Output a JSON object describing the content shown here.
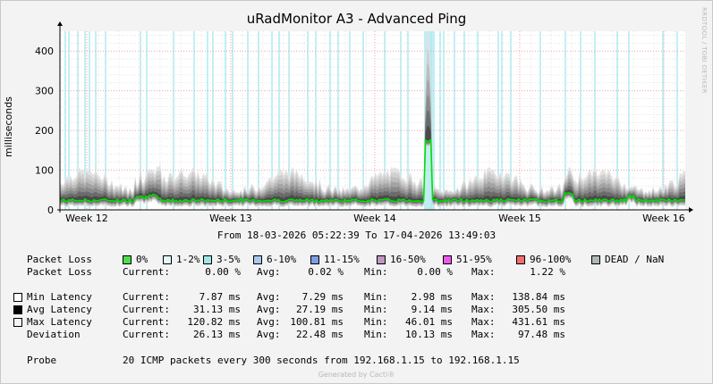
{
  "title": "uRadMonitor A3 - Advanced Ping",
  "watermark": "RRDTOOL / TOBI OETIKER",
  "footer": "Generated by Cacti®",
  "range_text": "From 18-03-2026 05:22:39 To 17-04-2026 13:49:03",
  "chart_data": {
    "type": "area",
    "title": "uRadMonitor A3 - Advanced Ping",
    "ylabel": "milliseconds",
    "ylim": [
      0,
      450
    ],
    "yticks": [
      0,
      100,
      200,
      300,
      400
    ],
    "xticks": [
      "Week 12",
      "Week 13",
      "Week 14",
      "Week 15",
      "Week 16"
    ],
    "grid": true,
    "colors": {
      "plot_bg": "#ffffff",
      "grid_major": "#f2a0a0",
      "grid_minor": "#e4e4e4",
      "loss_band": "#aeeaf0",
      "avg_line": "#00e000",
      "spike": "#000000",
      "band_dark": "#444444",
      "band_light": "#d9d9d9"
    },
    "approx_series": {
      "max_latency_avg": 100.81,
      "avg_latency_avg": 27.19,
      "peak_ms": 431.61,
      "peak_week_position": "Week 14 (late)"
    }
  },
  "legend": {
    "loss_label": "Packet Loss",
    "loss_items": [
      {
        "label": "0%",
        "color": "#4fdd4f"
      },
      {
        "label": "1-2%",
        "color": "#e2f7f7"
      },
      {
        "label": "3-5%",
        "color": "#a3e5e5"
      },
      {
        "label": "6-10%",
        "color": "#a9c9ef"
      },
      {
        "label": "11-15%",
        "color": "#7f9fe3"
      },
      {
        "label": "16-50%",
        "color": "#c097c0"
      },
      {
        "label": "51-95%",
        "color": "#ea5aea"
      },
      {
        "label": "96-100%",
        "color": "#ee6f6f"
      },
      {
        "label": "DEAD / NaN",
        "color": "#b1b8b1"
      }
    ],
    "loss_stats": {
      "name": "Packet Loss",
      "current": "0.00 %",
      "avg": "0.02 %",
      "min": "0.00 %",
      "max": "1.22 %"
    },
    "latency_rows": [
      {
        "name": "Min Latency",
        "swatch": "#ffffff",
        "current": "7.87 ms",
        "avg": "7.29 ms",
        "min": "2.98 ms",
        "max": "138.84 ms"
      },
      {
        "name": "Avg Latency",
        "swatch": "#000000",
        "current": "31.13 ms",
        "avg": "27.19 ms",
        "min": "9.14 ms",
        "max": "305.50 ms"
      },
      {
        "name": "Max Latency",
        "swatch": "#f4f4f4",
        "current": "120.82 ms",
        "avg": "100.81 ms",
        "min": "46.01 ms",
        "max": "431.61 ms"
      },
      {
        "name": "Deviation",
        "swatch": "",
        "current": "26.13 ms",
        "avg": "22.48 ms",
        "min": "10.13 ms",
        "max": "97.48 ms"
      }
    ],
    "labels": {
      "current": "Current:",
      "avg": "Avg:",
      "min": "Min:",
      "max": "Max:"
    },
    "probe_label": "Probe",
    "probe_text": "20 ICMP packets every 300 seconds from 192.168.1.15 to 192.168.1.15"
  }
}
